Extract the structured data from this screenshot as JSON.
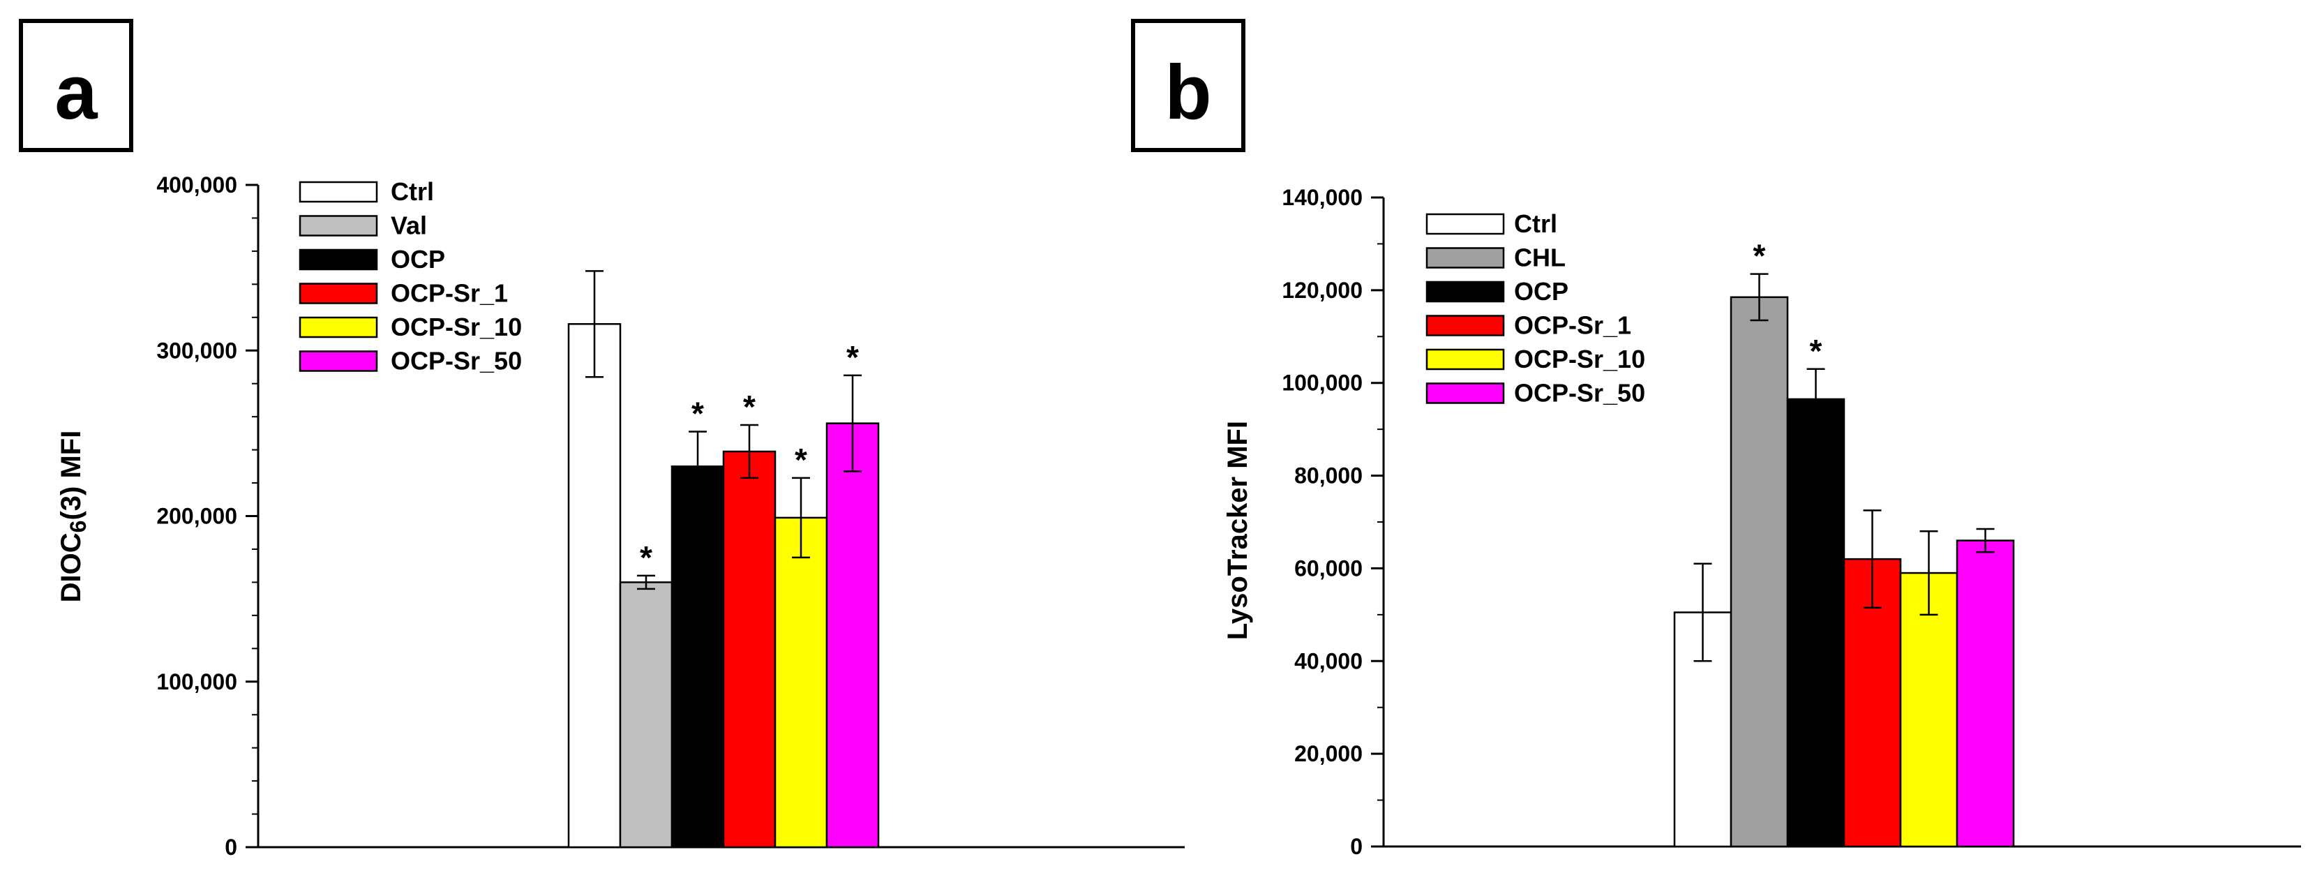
{
  "figure": {
    "panels": [
      "a",
      "b"
    ]
  },
  "chart_data": [
    {
      "panel": "a",
      "type": "bar",
      "title": "",
      "xlabel": "",
      "ylabel": "DIOC6(3) MFI",
      "ylim": [
        0,
        400000
      ],
      "yticks": [
        0,
        100000,
        200000,
        300000,
        400000
      ],
      "ytick_labels": [
        "0",
        "100,000",
        "200,000",
        "300,000",
        "400,000"
      ],
      "minor_ticks_per_major": 5,
      "legend_position": "top-left",
      "categories": [
        "Ctrl",
        "Val",
        "OCP",
        "OCP-Sr_1",
        "OCP-Sr_10",
        "OCP-Sr_50"
      ],
      "values": [
        316000,
        160000,
        230000,
        239000,
        199000,
        256000
      ],
      "errors": [
        32000,
        4000,
        21000,
        16000,
        24000,
        29000
      ],
      "significant": [
        false,
        true,
        true,
        true,
        true,
        true
      ],
      "sig_marker": "*",
      "colors": [
        "#ffffff",
        "#c0c0c0",
        "#000000",
        "#ff0000",
        "#ffff00",
        "#ff00ff"
      ]
    },
    {
      "panel": "b",
      "type": "bar",
      "title": "",
      "xlabel": "",
      "ylabel": "LysoTracker MFI",
      "ylim": [
        0,
        140000
      ],
      "yticks": [
        0,
        20000,
        40000,
        60000,
        80000,
        100000,
        120000,
        140000
      ],
      "ytick_labels": [
        "0",
        "20,000",
        "40,000",
        "60,000",
        "80,000",
        "100,000",
        "120,000",
        "140,000"
      ],
      "minor_ticks_per_major": 2,
      "legend_position": "top-left",
      "categories": [
        "Ctrl",
        "CHL",
        "OCP",
        "OCP-Sr_1",
        "OCP-Sr_10",
        "OCP-Sr_50"
      ],
      "values": [
        50500,
        118500,
        96500,
        62000,
        59000,
        66000
      ],
      "errors": [
        10500,
        5000,
        6500,
        10500,
        9000,
        2500
      ],
      "significant": [
        false,
        true,
        true,
        false,
        false,
        false
      ],
      "sig_marker": "*",
      "colors": [
        "#ffffff",
        "#a0a0a0",
        "#000000",
        "#ff0000",
        "#ffff00",
        "#ff00ff"
      ]
    }
  ]
}
